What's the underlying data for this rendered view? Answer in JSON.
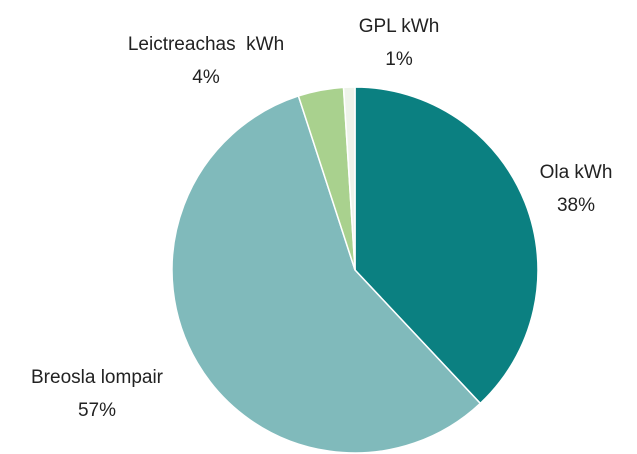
{
  "chart_data": {
    "type": "pie",
    "categories": [
      "Ola kWh",
      "Breosla lompair",
      "Leictreachas  kWh",
      "GPL kWh"
    ],
    "values": [
      38,
      57,
      4,
      1
    ],
    "value_labels": [
      "38%",
      "57%",
      "4%",
      "1%"
    ],
    "colors": [
      "#0b8081",
      "#80babb",
      "#a9d18e",
      "#eef3ea"
    ]
  }
}
